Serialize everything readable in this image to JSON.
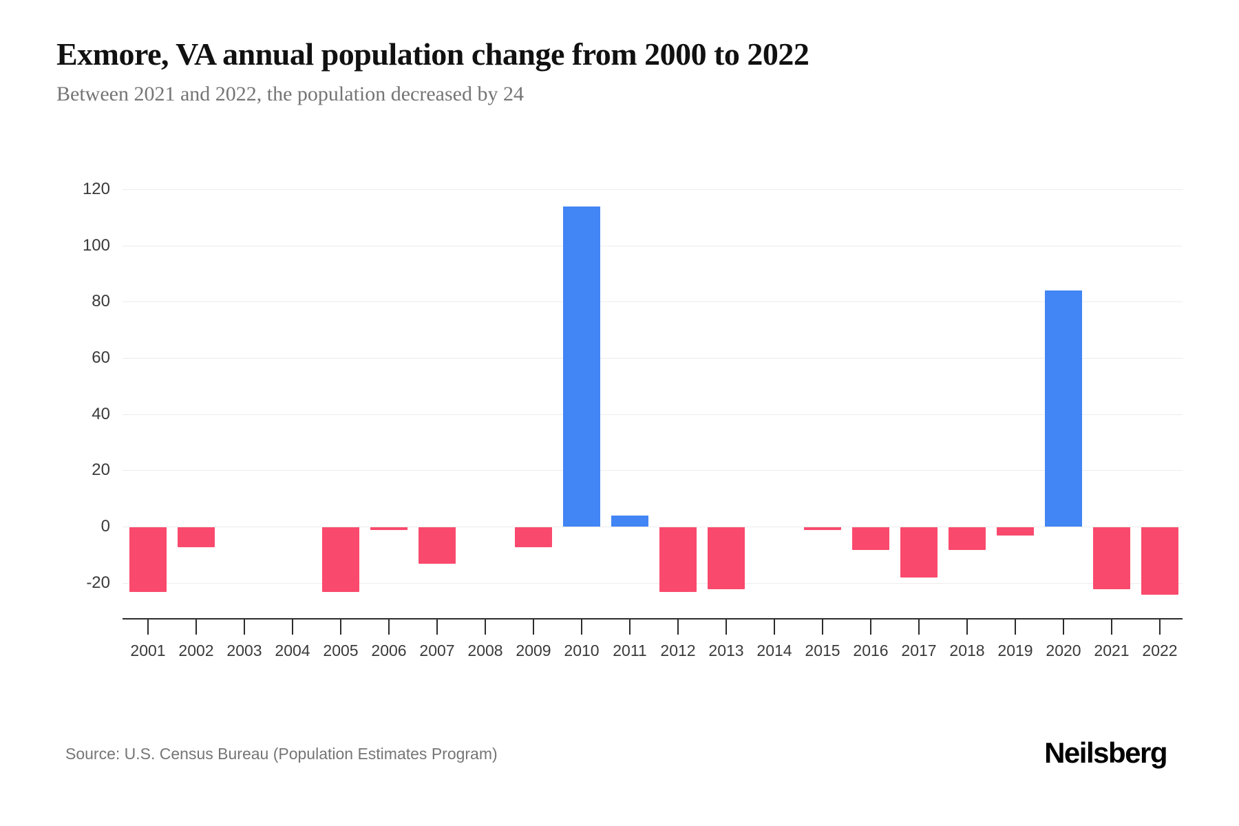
{
  "title": "Exmore, VA annual population change from 2000 to 2022",
  "subtitle": "Between 2021 and 2022, the population decreased by 24",
  "source": "Source: U.S. Census Bureau (Population Estimates Program)",
  "brand": "Neilsberg",
  "colors": {
    "positive_bar": "#4285f4",
    "negative_bar": "#f94a6d",
    "gridline": "#ececec",
    "axis_line": "#2b2b2b",
    "title_text": "#111111",
    "subtitle_text": "#757575",
    "tick_label": "#3a3a3a",
    "source_text": "#757575"
  },
  "chart_data": {
    "type": "bar",
    "title": "Exmore, VA annual population change from 2000 to 2022",
    "subtitle": "Between 2021 and 2022, the population decreased by 24",
    "xlabel": "",
    "ylabel": "",
    "categories": [
      "2001",
      "2002",
      "2003",
      "2004",
      "2005",
      "2006",
      "2007",
      "2008",
      "2009",
      "2010",
      "2011",
      "2012",
      "2013",
      "2014",
      "2015",
      "2016",
      "2017",
      "2018",
      "2019",
      "2020",
      "2021",
      "2022"
    ],
    "values": [
      -23,
      -7,
      0,
      0,
      -23,
      -1,
      -13,
      0,
      -7,
      114,
      4,
      -23,
      -22,
      0,
      -1,
      -8,
      -18,
      -8,
      -3,
      84,
      -22,
      -24
    ],
    "yticks": [
      120,
      100,
      80,
      60,
      40,
      20,
      0,
      -20
    ],
    "ylim": [
      -32,
      130
    ],
    "grid": true,
    "legend": false,
    "positive_color": "#4285f4",
    "negative_color": "#f94a6d"
  }
}
